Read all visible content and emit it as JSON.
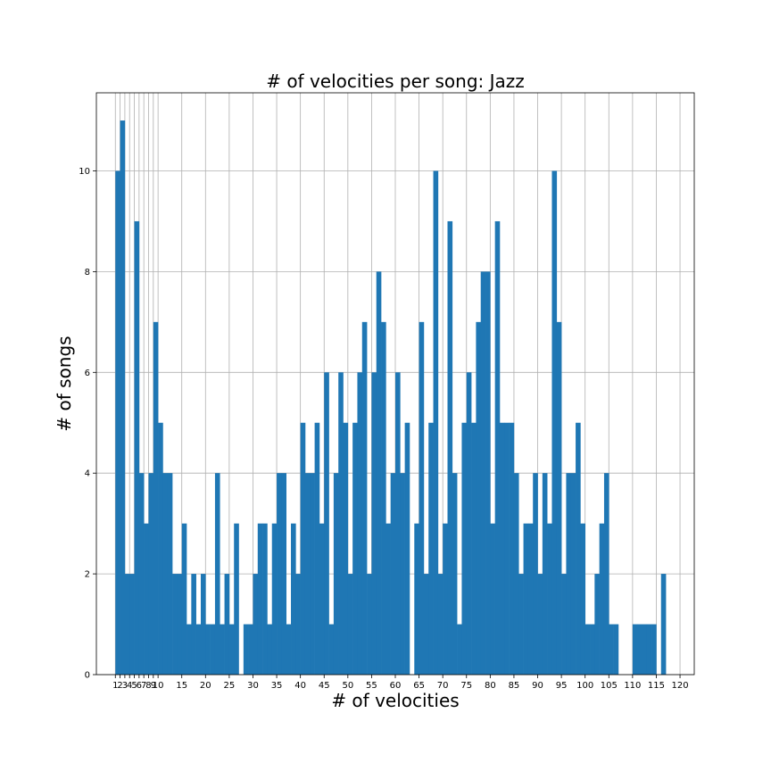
{
  "chart_data": {
    "type": "bar",
    "title": "# of velocities per song: Jazz",
    "xlabel": "# of velocities",
    "ylabel": "# of songs",
    "xlim": [
      -3,
      123
    ],
    "ylim": [
      0,
      11.55
    ],
    "grid": true,
    "bar_color": "#1f77b4",
    "x_ticks": [
      1,
      2,
      3,
      4,
      5,
      6,
      7,
      8,
      9,
      10,
      15,
      20,
      25,
      30,
      35,
      40,
      45,
      50,
      55,
      60,
      65,
      70,
      75,
      80,
      85,
      90,
      95,
      100,
      105,
      110,
      115,
      120
    ],
    "x_tick_labels": [
      "1",
      "2",
      "3",
      "4",
      "5",
      "6",
      "7",
      "8",
      "9",
      "10",
      "15",
      "20",
      "25",
      "30",
      "35",
      "40",
      "45",
      "50",
      "55",
      "60",
      "65",
      "70",
      "75",
      "80",
      "85",
      "90",
      "95",
      "100",
      "105",
      "110",
      "115",
      "120"
    ],
    "y_ticks": [
      0,
      2,
      4,
      6,
      8,
      10
    ],
    "y_tick_labels": [
      "0",
      "2",
      "4",
      "6",
      "8",
      "10"
    ],
    "x": [
      1,
      2,
      3,
      4,
      5,
      6,
      7,
      8,
      9,
      10,
      11,
      12,
      13,
      14,
      15,
      16,
      17,
      18,
      19,
      20,
      21,
      22,
      23,
      24,
      25,
      26,
      27,
      28,
      29,
      30,
      31,
      32,
      33,
      34,
      35,
      36,
      37,
      38,
      39,
      40,
      41,
      42,
      43,
      44,
      45,
      46,
      47,
      48,
      49,
      50,
      51,
      52,
      53,
      54,
      55,
      56,
      57,
      58,
      59,
      60,
      61,
      62,
      63,
      64,
      65,
      66,
      67,
      68,
      69,
      70,
      71,
      72,
      73,
      74,
      75,
      76,
      77,
      78,
      79,
      80,
      81,
      82,
      83,
      84,
      85,
      86,
      87,
      88,
      89,
      90,
      91,
      92,
      93,
      94,
      95,
      96,
      97,
      98,
      99,
      100,
      101,
      102,
      103,
      104,
      105,
      106,
      107,
      108,
      109,
      110,
      111,
      112,
      113,
      114,
      115,
      116,
      117,
      118,
      119,
      120
    ],
    "values": [
      10,
      11,
      2,
      2,
      9,
      4,
      3,
      4,
      7,
      5,
      4,
      4,
      2,
      2,
      3,
      1,
      2,
      1,
      2,
      1,
      1,
      4,
      1,
      2,
      1,
      3,
      0,
      1,
      1,
      2,
      3,
      3,
      1,
      3,
      4,
      4,
      1,
      3,
      2,
      5,
      4,
      4,
      5,
      3,
      6,
      1,
      4,
      6,
      5,
      2,
      5,
      6,
      7,
      2,
      6,
      8,
      7,
      3,
      4,
      6,
      4,
      5,
      0,
      3,
      7,
      2,
      5,
      10,
      2,
      3,
      9,
      4,
      1,
      5,
      6,
      5,
      7,
      8,
      8,
      3,
      9,
      5,
      5,
      5,
      4,
      2,
      3,
      3,
      4,
      2,
      4,
      3,
      10,
      7,
      2,
      4,
      4,
      5,
      3,
      1,
      1,
      2,
      3,
      4,
      1,
      1,
      0,
      0,
      0,
      1,
      1,
      1,
      1,
      1,
      0,
      2,
      0,
      0,
      0,
      0
    ]
  }
}
